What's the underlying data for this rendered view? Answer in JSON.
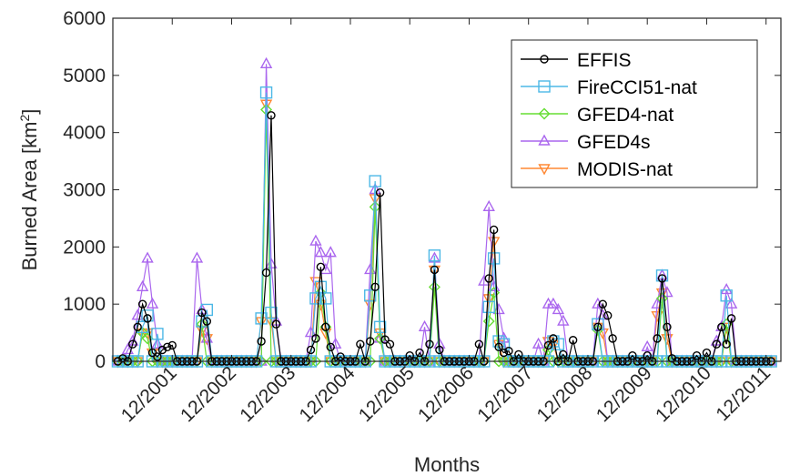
{
  "chart_data": {
    "type": "line",
    "xlabel": "Months",
    "ylabel": "Burned Area [km",
    "ylabel_sup": "2",
    "ylabel_suffix": "]",
    "ylim": [
      0,
      6000
    ],
    "yticks": [
      0,
      1000,
      2000,
      3000,
      4000,
      5000,
      6000
    ],
    "ytick_labels": [
      "0",
      "1000",
      "2000",
      "3000",
      "4000",
      "5000",
      "6000"
    ],
    "xlim": [
      0,
      135
    ],
    "xticks": [
      12,
      24,
      36,
      48,
      60,
      72,
      84,
      96,
      108,
      120,
      132
    ],
    "xtick_labels": [
      "12/2001",
      "12/2002",
      "12/2003",
      "12/2004",
      "12/2005",
      "12/2006",
      "12/2007",
      "12/2008",
      "12/2009",
      "12/2010",
      "12/2011"
    ],
    "legend_position": "top-right",
    "grid": false,
    "series": [
      {
        "name": "EFFIS",
        "color": "#000000",
        "marker": "circle",
        "peaks": {
          "2": 50,
          "4": 300,
          "5": 600,
          "6": 1000,
          "7": 750,
          "8": 150,
          "9": 80,
          "10": 200,
          "11": 250,
          "12": 280,
          "18": 850,
          "19": 700,
          "30": 350,
          "31": 1550,
          "32": 4300,
          "33": 650,
          "40": 200,
          "41": 400,
          "42": 1650,
          "43": 600,
          "44": 250,
          "46": 80,
          "50": 300,
          "52": 350,
          "53": 1300,
          "54": 2950,
          "55": 380,
          "56": 300,
          "60": 100,
          "62": 150,
          "64": 300,
          "65": 1600,
          "66": 200,
          "74": 300,
          "76": 1450,
          "77": 2300,
          "78": 250,
          "79": 150,
          "80": 180,
          "82": 120,
          "88": 280,
          "89": 400,
          "91": 120,
          "93": 370,
          "98": 600,
          "99": 1000,
          "100": 800,
          "101": 400,
          "105": 100,
          "108": 100,
          "110": 400,
          "111": 1450,
          "112": 600,
          "113": 50,
          "118": 100,
          "120": 150,
          "122": 300,
          "123": 600,
          "124": 300,
          "125": 750
        }
      },
      {
        "name": "FireCCI51-nat",
        "color": "#4db8e6",
        "marker": "square",
        "peaks": {
          "6": 600,
          "7": 800,
          "9": 480,
          "18": 700,
          "19": 900,
          "30": 750,
          "31": 4700,
          "32": 850,
          "41": 1100,
          "42": 1300,
          "43": 1100,
          "52": 1150,
          "53": 3150,
          "54": 600,
          "65": 1850,
          "76": 950,
          "77": 1800,
          "78": 350,
          "79": 300,
          "89": 350,
          "90": 300,
          "98": 650,
          "111": 1500,
          "124": 1150
        }
      },
      {
        "name": "GFED4-nat",
        "color": "#66dd33",
        "marker": "diamond",
        "peaks": {
          "6": 500,
          "7": 400,
          "18": 650,
          "31": 4400,
          "42": 1200,
          "43": 600,
          "53": 2700,
          "54": 400,
          "65": 1300,
          "76": 700,
          "77": 1200,
          "88": 200,
          "98": 550,
          "111": 1100,
          "124": 650
        }
      },
      {
        "name": "GFED4s",
        "color": "#aa66ee",
        "marker": "triangle-up",
        "peaks": {
          "3": 200,
          "4": 350,
          "5": 800,
          "6": 1300,
          "7": 1800,
          "8": 1000,
          "9": 300,
          "17": 1800,
          "18": 900,
          "19": 400,
          "31": 5200,
          "32": 1700,
          "33": 700,
          "40": 500,
          "41": 2100,
          "42": 1900,
          "43": 1600,
          "44": 1900,
          "45": 300,
          "52": 1600,
          "53": 3000,
          "54": 400,
          "63": 600,
          "65": 1800,
          "66": 300,
          "75": 1400,
          "76": 2700,
          "77": 1300,
          "78": 900,
          "79": 400,
          "86": 300,
          "88": 1000,
          "89": 1000,
          "90": 900,
          "91": 700,
          "98": 1000,
          "99": 800,
          "108": 250,
          "110": 1000,
          "111": 1500,
          "112": 1200,
          "122": 350,
          "123": 600,
          "124": 1250,
          "125": 1000
        }
      },
      {
        "name": "MODIS-nat",
        "color": "#ff8833",
        "marker": "triangle-down",
        "peaks": {
          "6": 500,
          "7": 500,
          "8": 150,
          "18": 550,
          "19": 400,
          "30": 700,
          "31": 4500,
          "32": 700,
          "41": 1400,
          "42": 1000,
          "43": 500,
          "52": 1000,
          "53": 2850,
          "54": 500,
          "65": 1600,
          "76": 1100,
          "77": 2100,
          "78": 300,
          "88": 350,
          "89": 300,
          "98": 600,
          "99": 500,
          "110": 800,
          "111": 1200,
          "112": 400,
          "124": 600
        }
      }
    ]
  }
}
